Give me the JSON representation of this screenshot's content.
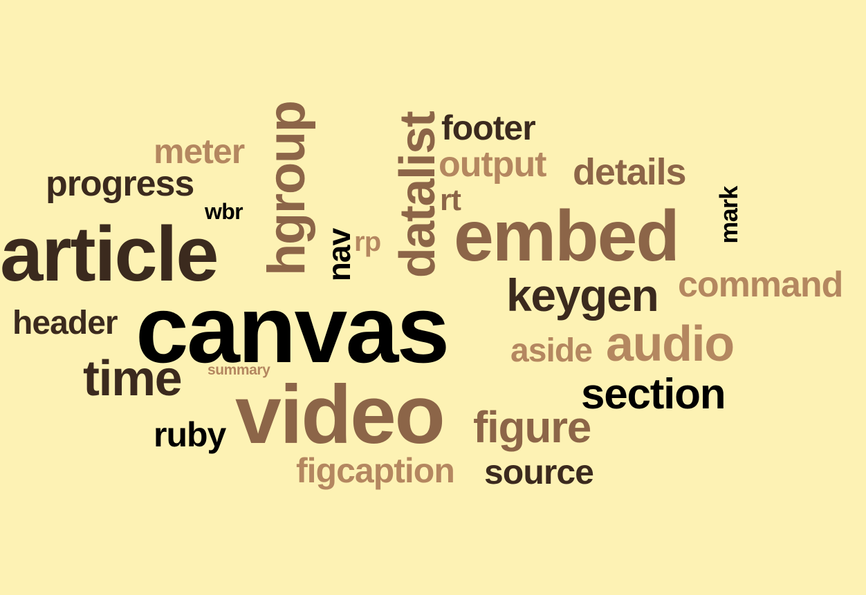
{
  "colors": {
    "background": "#FDF2B4",
    "dark": "#3B2A1E",
    "black": "#000000",
    "brown": "#8C6548",
    "tan": "#B48760"
  },
  "words": {
    "canvas": "canvas",
    "article": "article",
    "video": "video",
    "embed": "embed",
    "hgroup": "hgroup",
    "datalist": "datalist",
    "section": "section",
    "audio": "audio",
    "keygen": "keygen",
    "command": "command",
    "figure": "figure",
    "time": "time",
    "progress": "progress",
    "details": "details",
    "output": "output",
    "footer": "footer",
    "meter": "meter",
    "header": "header",
    "figcaption": "figcaption",
    "source": "source",
    "ruby": "ruby",
    "aside": "aside",
    "nav": "nav",
    "mark": "mark",
    "rp": "rp",
    "rt": "rt",
    "wbr": "wbr",
    "summary": "summary"
  }
}
